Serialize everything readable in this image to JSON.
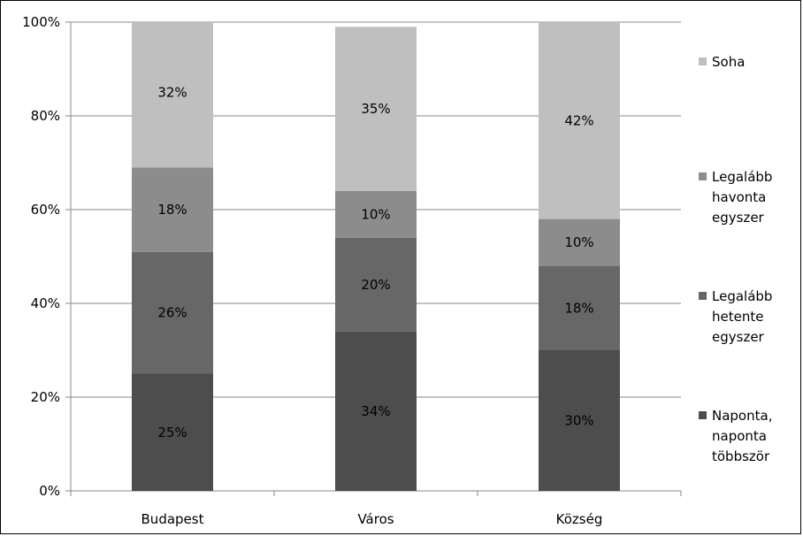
{
  "chart_data": {
    "type": "bar",
    "stacked": true,
    "percent": true,
    "categories": [
      "Budapest",
      "Város",
      "Község"
    ],
    "series": [
      {
        "name": "Naponta, naponta többször",
        "legend_lines": [
          "Naponta,",
          "naponta",
          "többször"
        ],
        "color": "#4d4d4d",
        "values": [
          25,
          34,
          30
        ],
        "labels": [
          "25%",
          "34%",
          "30%"
        ]
      },
      {
        "name": "Legalább hetente egyszer",
        "legend_lines": [
          "Legalább",
          "hetente",
          "egyszer"
        ],
        "color": "#676767",
        "values": [
          26,
          20,
          18
        ],
        "labels": [
          "26%",
          "20%",
          "18%"
        ]
      },
      {
        "name": "Legalább havonta egyszer",
        "legend_lines": [
          "Legalább",
          "havonta",
          "egyszer"
        ],
        "color": "#8c8c8c",
        "values": [
          18,
          10,
          10
        ],
        "labels": [
          "18%",
          "10%",
          "10%"
        ]
      },
      {
        "name": "Soha",
        "legend_lines": [
          "Soha"
        ],
        "color": "#bfbfbf",
        "values": [
          32,
          35,
          42
        ],
        "labels": [
          "32%",
          "35%",
          "42%"
        ]
      }
    ],
    "yticks": [
      "0%",
      "20%",
      "40%",
      "60%",
      "80%",
      "100%"
    ],
    "ylim": [
      0,
      100
    ],
    "grid": true,
    "legend_position": "right",
    "title": "",
    "xlabel": "",
    "ylabel": ""
  }
}
